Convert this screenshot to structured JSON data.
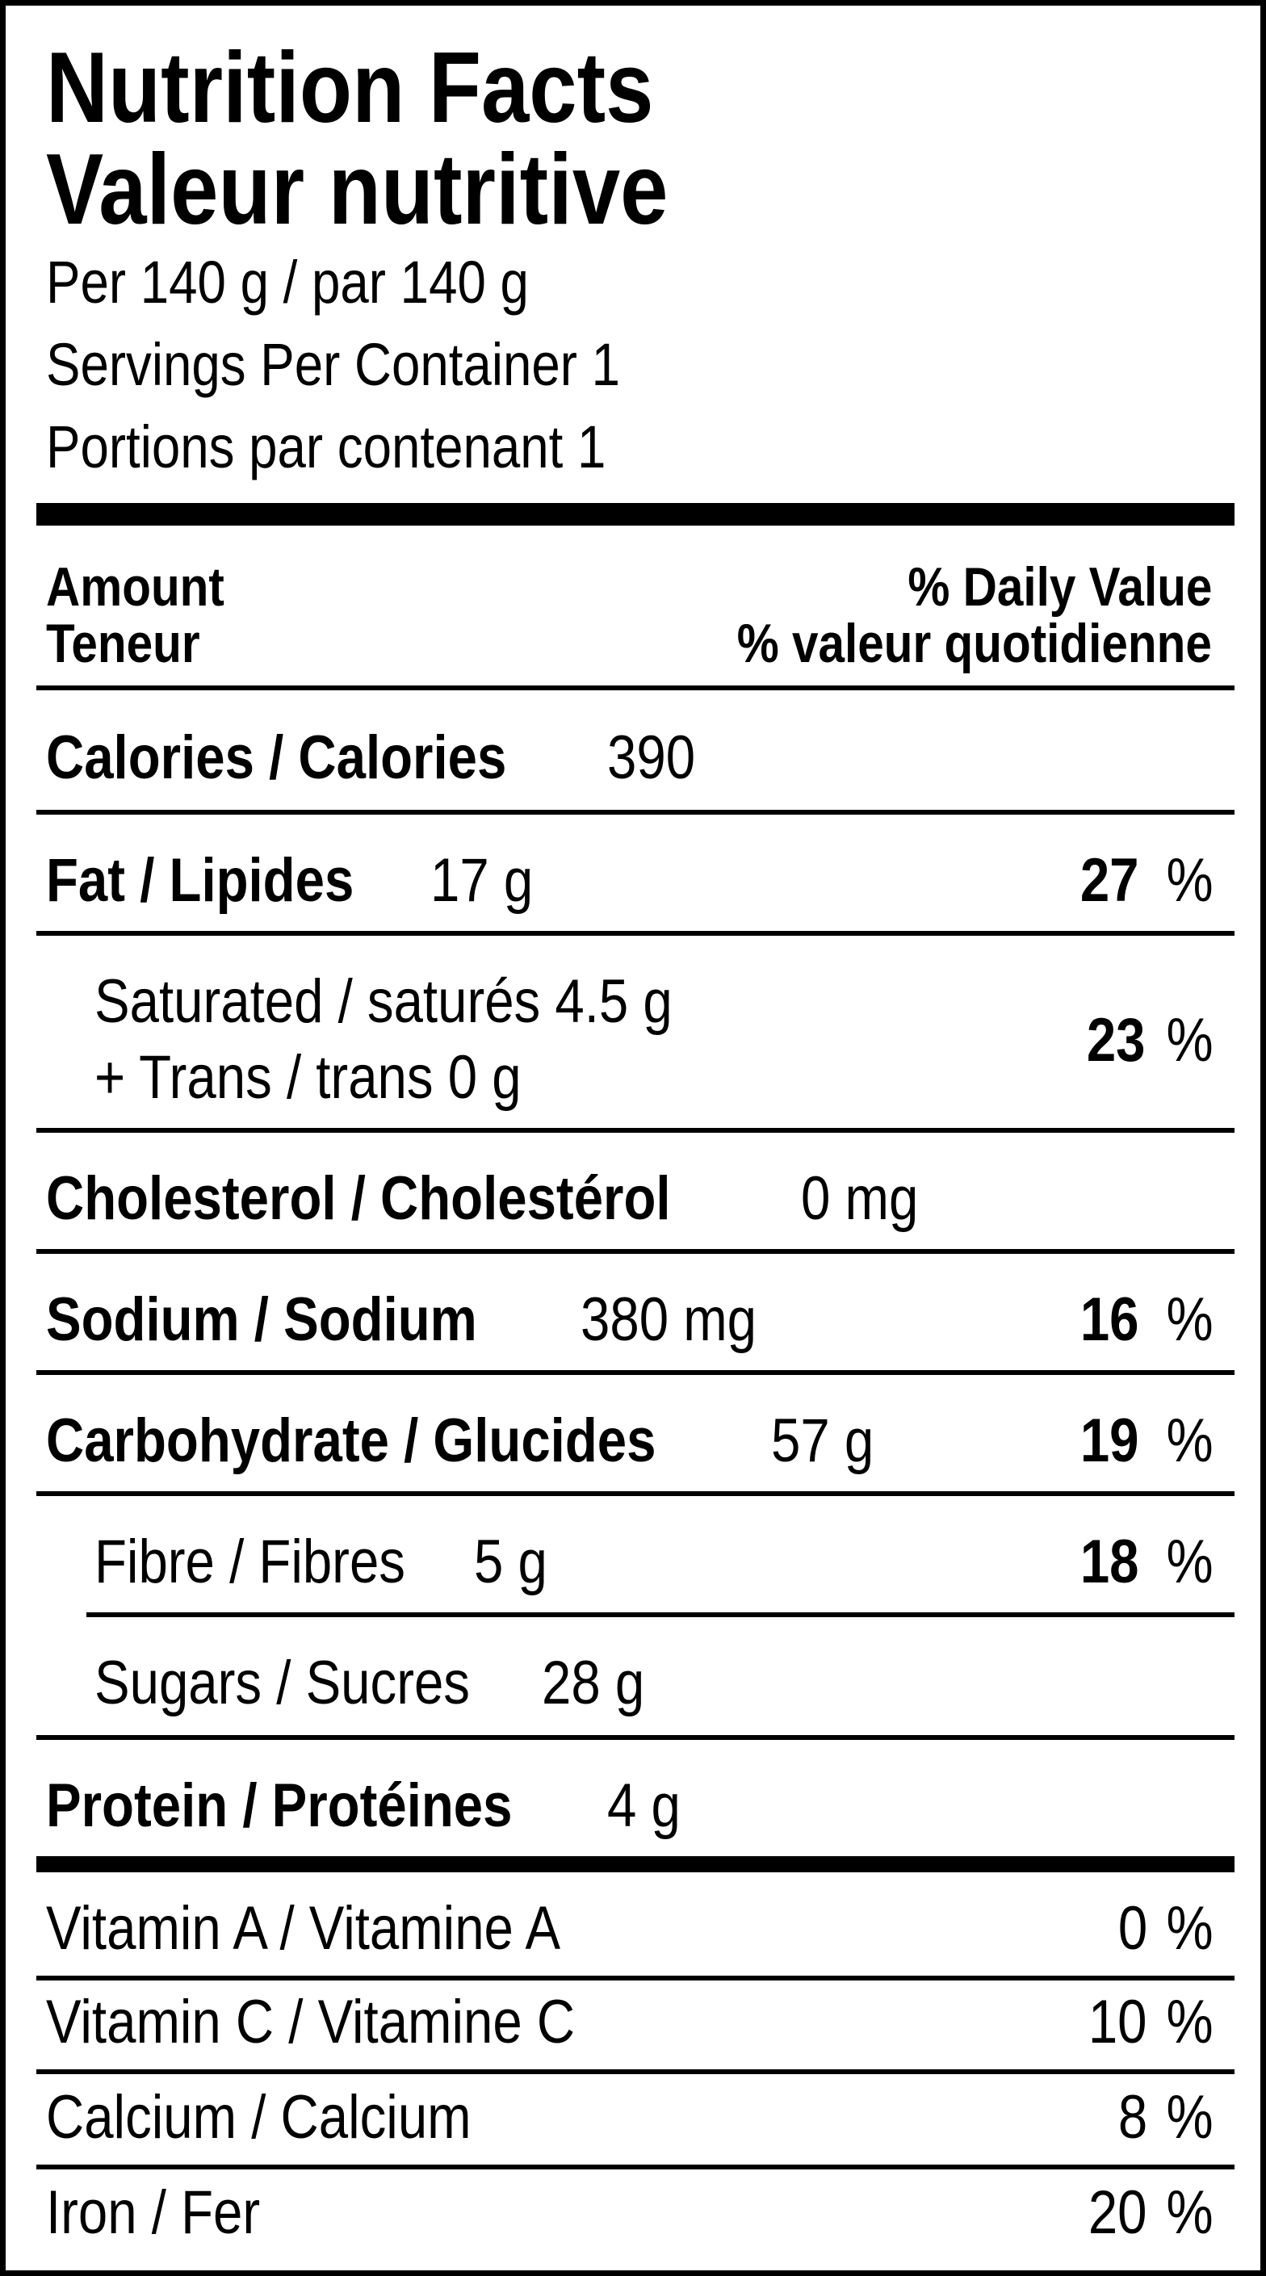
{
  "title_en": "Nutrition Facts",
  "title_fr": "Valeur nutritive",
  "serving": "Per 140  g / par 140  g",
  "servings_en": "Servings Per Container 1",
  "servings_fr": "Portions par contenant 1",
  "col_amount_en": "Amount",
  "col_amount_fr": "Teneur",
  "col_dv_en": "% Daily Value",
  "col_dv_fr": "% valeur quotidienne",
  "calories": {
    "label": "Calories / Calories",
    "value": "390"
  },
  "fat": {
    "label": "Fat / Lipides",
    "value": "17 g",
    "dv": "27",
    "pct": "%"
  },
  "saturated": {
    "label": "Saturated / saturés 4.5 g",
    "trans": "+ Trans / trans 0 g",
    "dv": "23",
    "pct": "%"
  },
  "cholesterol": {
    "label": "Cholesterol / Cholestérol",
    "value": "0 mg"
  },
  "sodium": {
    "label": "Sodium / Sodium",
    "value": "380 mg",
    "dv": "16",
    "pct": "%"
  },
  "carbohydrate": {
    "label": "Carbohydrate / Glucides",
    "value": "57 g",
    "dv": "19",
    "pct": "%"
  },
  "fibre": {
    "label": "Fibre / Fibres",
    "value": "5 g",
    "dv": "18",
    "pct": "%"
  },
  "sugars": {
    "label": "Sugars / Sucres",
    "value": "28 g"
  },
  "protein": {
    "label": "Protein / Protéines",
    "value": "4 g"
  },
  "vitamin_a": {
    "label": "Vitamin A / Vitamine A",
    "dv": "0",
    "pct": "%"
  },
  "vitamin_c": {
    "label": "Vitamin C / Vitamine C",
    "dv": "10",
    "pct": "%"
  },
  "calcium": {
    "label": "Calcium / Calcium",
    "dv": "8",
    "pct": "%"
  },
  "iron": {
    "label": "Iron / Fer",
    "dv": "20",
    "pct": "%"
  }
}
